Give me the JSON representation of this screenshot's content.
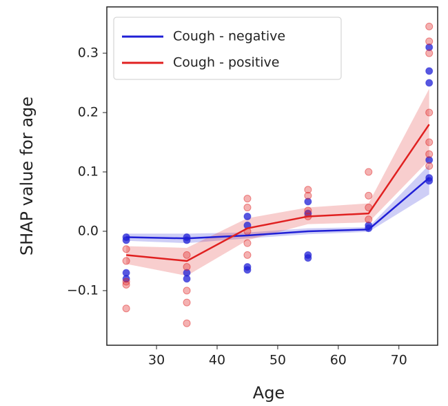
{
  "chart_data": {
    "type": "line",
    "xlabel": "Age",
    "ylabel": "SHAP value for age",
    "x": [
      25,
      35,
      45,
      55,
      65,
      75
    ],
    "xlim": [
      21.8,
      76.4
    ],
    "ylim": [
      -0.192,
      0.378
    ],
    "xticks": [
      30,
      40,
      50,
      60,
      70
    ],
    "yticks": [
      {
        "value": -0.1,
        "label": "−0.1"
      },
      {
        "value": 0,
        "label": "0.0"
      },
      0.1,
      0.2,
      0.3
    ],
    "legend": "upper left",
    "series": [
      {
        "name": "Cough - negative",
        "color": "#1f1fd6",
        "values": [
          -0.01,
          -0.012,
          -0.007,
          0.0,
          0.003,
          0.09
        ],
        "band_lower": [
          -0.016,
          -0.02,
          -0.012,
          -0.005,
          -0.001,
          0.062
        ],
        "band_upper": [
          -0.004,
          -0.004,
          -0.002,
          0.005,
          0.007,
          0.112
        ],
        "scatter_x": [
          25,
          25,
          25,
          25,
          35,
          35,
          35,
          35,
          45,
          45,
          45,
          45,
          55,
          55,
          55,
          55,
          65,
          65,
          75,
          75,
          75,
          75,
          75,
          75
        ],
        "scatter_y": [
          -0.01,
          -0.015,
          -0.07,
          -0.08,
          -0.01,
          -0.015,
          -0.07,
          -0.08,
          0.025,
          0.01,
          -0.06,
          -0.065,
          0.05,
          0.03,
          -0.04,
          -0.045,
          0.005,
          0.01,
          0.31,
          0.27,
          0.25,
          0.12,
          0.09,
          0.085
        ]
      },
      {
        "name": "Cough - positive",
        "color": "#e02020",
        "values": [
          -0.04,
          -0.05,
          0.005,
          0.025,
          0.03,
          0.18
        ],
        "band_lower": [
          -0.055,
          -0.075,
          -0.015,
          0.012,
          0.015,
          0.12
        ],
        "band_upper": [
          -0.025,
          -0.028,
          0.022,
          0.04,
          0.047,
          0.24
        ],
        "scatter_x": [
          25,
          25,
          25,
          25,
          25,
          35,
          35,
          35,
          35,
          35,
          45,
          45,
          45,
          45,
          45,
          55,
          55,
          55,
          55,
          65,
          65,
          65,
          65,
          75,
          75,
          75,
          75,
          75,
          75,
          75
        ],
        "scatter_y": [
          -0.03,
          -0.05,
          -0.085,
          -0.09,
          -0.13,
          -0.04,
          -0.06,
          -0.1,
          -0.12,
          -0.155,
          0.055,
          0.04,
          0.0,
          -0.02,
          -0.04,
          0.07,
          0.06,
          0.035,
          0.025,
          0.1,
          0.06,
          0.04,
          0.02,
          0.345,
          0.32,
          0.3,
          0.2,
          0.15,
          0.13,
          0.11
        ]
      }
    ]
  }
}
